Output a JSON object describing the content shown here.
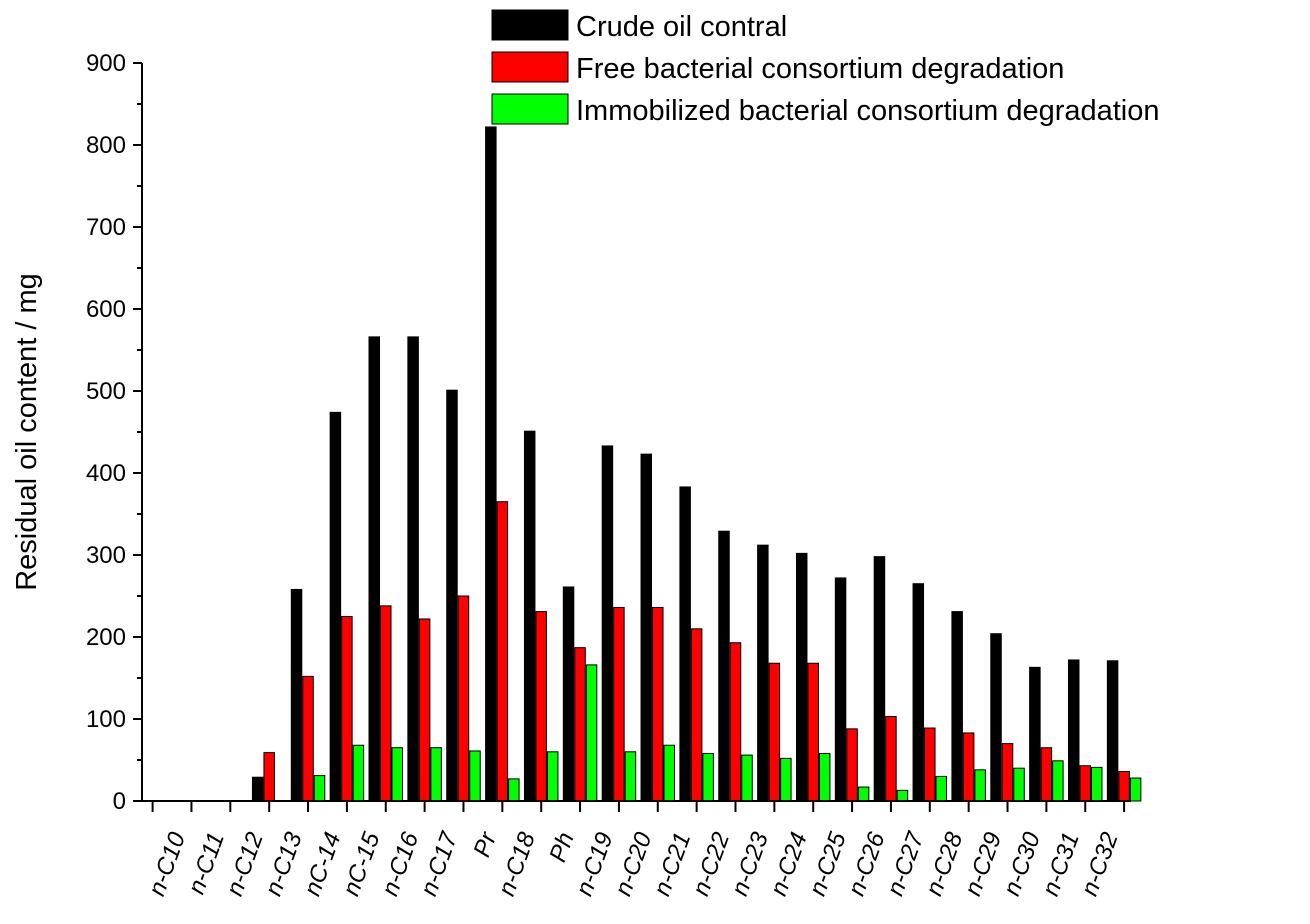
{
  "chart_data": {
    "type": "bar",
    "title": "",
    "xlabel": "",
    "ylabel": "Residual oil content / mg",
    "ylim": [
      0,
      900
    ],
    "yticks": [
      0,
      100,
      200,
      300,
      400,
      500,
      600,
      700,
      800,
      900
    ],
    "grid": false,
    "legend_position": "top-right",
    "categories": [
      "n-C10",
      "n-C11",
      "n-C12",
      "n-C13",
      "nC-14",
      "nC-15",
      "n-C16",
      "n-C17",
      "Pr",
      "n-C18",
      "Ph",
      "n-C19",
      "n-C20",
      "n-C21",
      "n-C22",
      "n-C23",
      "n-C24",
      "n-C25",
      "n-C26",
      "n-C27",
      "n-C28",
      "n-C29",
      "n-C30",
      "n-C31",
      "n-C32"
    ],
    "series": [
      {
        "name": "Crude oil contral",
        "color": "#000000",
        "values": [
          0,
          0,
          29,
          258,
          474,
          566,
          566,
          501,
          822,
          451,
          261,
          433,
          423,
          383,
          329,
          312,
          302,
          272,
          298,
          265,
          231,
          204,
          163,
          172,
          171
        ]
      },
      {
        "name": "Free bacterial consortium degradation",
        "color": "#ff0000",
        "values": [
          0,
          0,
          59,
          152,
          225,
          238,
          222,
          250,
          365,
          231,
          187,
          236,
          236,
          210,
          193,
          168,
          168,
          88,
          103,
          89,
          83,
          70,
          65,
          43,
          36
        ]
      },
      {
        "name": "Immobilized bacterial consortium degradation",
        "color": "#00ff00",
        "values": [
          0,
          0,
          0,
          31,
          68,
          65,
          65,
          61,
          27,
          60,
          166,
          60,
          68,
          58,
          56,
          52,
          58,
          17,
          13,
          30,
          38,
          40,
          49,
          41,
          28
        ]
      }
    ]
  }
}
